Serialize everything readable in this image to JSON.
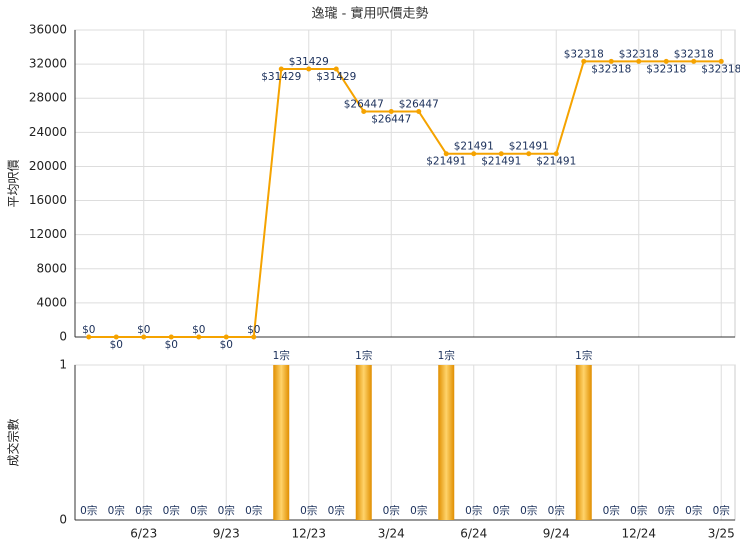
{
  "title": "逸瓏 - 實用呎價走勢",
  "chart_data": [
    {
      "type": "line",
      "ylabel": "平均呎價",
      "color": "#f5a300",
      "values": [
        0,
        0,
        0,
        0,
        0,
        0,
        0,
        31429,
        31429,
        31429,
        26447,
        26447,
        26447,
        21491,
        21491,
        21491,
        21491,
        21491,
        32318,
        32318,
        32318,
        32318,
        32318,
        32318
      ],
      "value_labels": [
        "$0",
        "$0",
        "$0",
        "$0",
        "$0",
        "$0",
        "$0",
        "$31429",
        "$31429",
        "$31429",
        "$26447",
        "$26447",
        "$26447",
        "$21491",
        "$21491",
        "$21491",
        "$21491",
        "$21491",
        "$32318",
        "$32318",
        "$32318",
        "$32318",
        "$32318",
        "$32318"
      ],
      "ylim": [
        0,
        36000
      ],
      "yticks": [
        0,
        4000,
        8000,
        12000,
        16000,
        20000,
        24000,
        28000,
        32000,
        36000
      ],
      "grid": true
    },
    {
      "type": "bar",
      "ylabel": "成交宗數",
      "color": "#f0a000",
      "categories": [
        null,
        null,
        "6/23",
        null,
        null,
        "9/23",
        null,
        null,
        "12/23",
        null,
        null,
        "3/24",
        null,
        null,
        "6/24",
        null,
        null,
        "9/24",
        null,
        null,
        "12/24",
        null,
        null,
        "3/25"
      ],
      "values": [
        0,
        0,
        0,
        0,
        0,
        0,
        0,
        1,
        0,
        0,
        1,
        0,
        0,
        1,
        0,
        0,
        0,
        0,
        1,
        0,
        0,
        0,
        0,
        0
      ],
      "value_labels": [
        "0宗",
        "0宗",
        "0宗",
        "0宗",
        "0宗",
        "0宗",
        "0宗",
        "1宗",
        "0宗",
        "0宗",
        "1宗",
        "0宗",
        "0宗",
        "1宗",
        "0宗",
        "0宗",
        "0宗",
        "0宗",
        "1宗",
        "0宗",
        "0宗",
        "0宗",
        "0宗",
        "0宗"
      ],
      "ylim": [
        0,
        1
      ],
      "yticks": [
        0,
        1
      ],
      "grid": true
    }
  ]
}
